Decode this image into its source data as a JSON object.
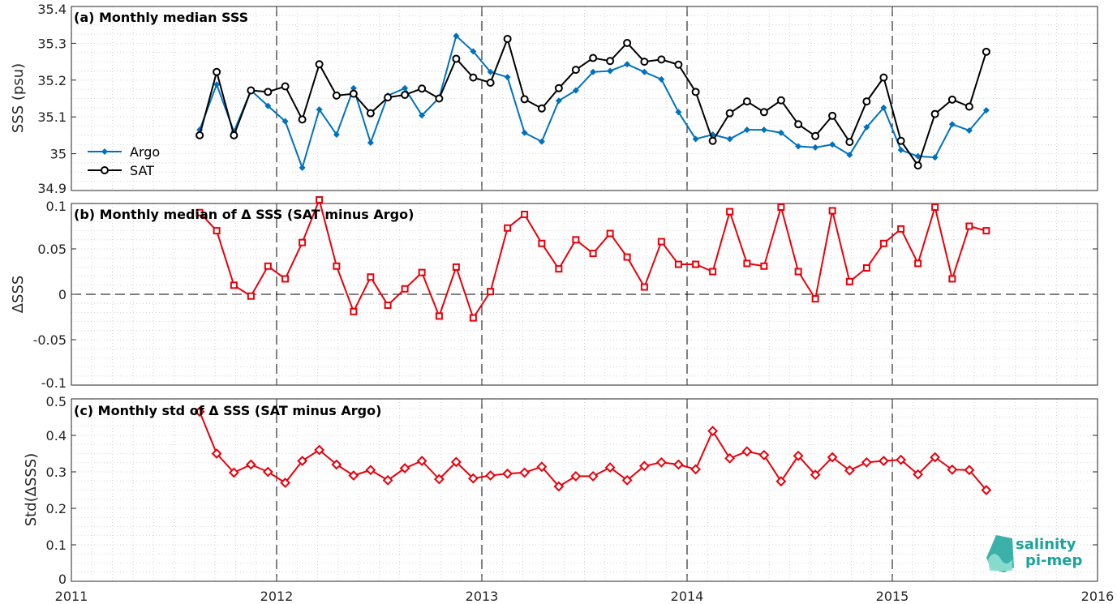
{
  "colors": {
    "argo": "#0072BD",
    "sat": "#000000",
    "delta": "#E8000B",
    "logo": "#1aa39a"
  },
  "logo": {
    "line1": "salinity",
    "line2": "pi-mep"
  },
  "x_axis": {
    "range": [
      2011,
      2016
    ],
    "ticks": [
      "2011",
      "2012",
      "2013",
      "2014",
      "2015",
      "2016"
    ],
    "vlines": [
      2012,
      2013,
      2014,
      2015
    ]
  },
  "chart_data": [
    {
      "type": "line",
      "title": "(a) Monthly median SSS",
      "ylabel": "SSS (psu)",
      "ylim": [
        34.9,
        35.4
      ],
      "yticks": [
        "34.9",
        "35",
        "35.1",
        "35.2",
        "35.3",
        "35.4"
      ],
      "grid": true,
      "legend_position": "left",
      "x": [
        2011.625,
        2011.708,
        2011.792,
        2011.875,
        2011.958,
        2012.042,
        2012.125,
        2012.208,
        2012.292,
        2012.375,
        2012.458,
        2012.542,
        2012.625,
        2012.708,
        2012.792,
        2012.875,
        2012.958,
        2013.042,
        2013.125,
        2013.208,
        2013.292,
        2013.375,
        2013.458,
        2013.542,
        2013.625,
        2013.708,
        2013.792,
        2013.875,
        2013.958,
        2014.042,
        2014.125,
        2014.208,
        2014.292,
        2014.375,
        2014.458,
        2014.542,
        2014.625,
        2014.708,
        2014.792,
        2014.875,
        2014.958,
        2015.042,
        2015.125,
        2015.208,
        2015.292,
        2015.375,
        2015.458
      ],
      "series": [
        {
          "name": "Argo",
          "marker": "diamond-filled",
          "values": [
            35.065,
            35.188,
            35.06,
            35.172,
            35.13,
            35.088,
            34.962,
            35.12,
            35.052,
            35.178,
            35.03,
            35.158,
            35.178,
            35.104,
            35.152,
            35.32,
            35.278,
            35.222,
            35.208,
            35.057,
            35.033,
            35.144,
            35.172,
            35.222,
            35.225,
            35.243,
            35.222,
            35.202,
            35.113,
            35.04,
            35.052,
            35.04,
            35.065,
            35.065,
            35.057,
            35.02,
            35.017,
            35.025,
            34.997,
            35.072,
            35.125,
            35.01,
            34.993,
            34.99,
            35.08,
            35.063,
            35.118
          ]
        },
        {
          "name": "SAT",
          "marker": "circle-open",
          "values": [
            35.05,
            35.222,
            35.05,
            35.172,
            35.168,
            35.183,
            35.093,
            35.243,
            35.158,
            35.163,
            35.11,
            35.153,
            35.16,
            35.177,
            35.15,
            35.258,
            35.207,
            35.193,
            35.312,
            35.148,
            35.123,
            35.178,
            35.228,
            35.26,
            35.252,
            35.301,
            35.25,
            35.256,
            35.242,
            35.168,
            35.035,
            35.11,
            35.142,
            35.113,
            35.145,
            35.08,
            35.048,
            35.103,
            35.032,
            35.142,
            35.207,
            35.035,
            34.968,
            35.108,
            35.147,
            35.128,
            35.277
          ]
        }
      ]
    },
    {
      "type": "line",
      "title": "(b) Monthly median of Δ SSS (SAT minus Argo)",
      "ylabel": "ΔSSS",
      "ylim": [
        -0.1,
        0.1
      ],
      "yticks": [
        "-0.1",
        "-0.05",
        "0",
        "0.05",
        "0.1"
      ],
      "grid": true,
      "zero_line": true,
      "x": [
        2011.625,
        2011.708,
        2011.792,
        2011.875,
        2011.958,
        2012.042,
        2012.125,
        2012.208,
        2012.292,
        2012.375,
        2012.458,
        2012.542,
        2012.625,
        2012.708,
        2012.792,
        2012.875,
        2012.958,
        2013.042,
        2013.125,
        2013.208,
        2013.292,
        2013.375,
        2013.458,
        2013.542,
        2013.625,
        2013.708,
        2013.792,
        2013.875,
        2013.958,
        2014.042,
        2014.125,
        2014.208,
        2014.292,
        2014.375,
        2014.458,
        2014.542,
        2014.625,
        2014.708,
        2014.792,
        2014.875,
        2014.958,
        2015.042,
        2015.125,
        2015.208,
        2015.292,
        2015.375,
        2015.458
      ],
      "series": [
        {
          "name": "",
          "marker": "square-open",
          "values": [
            0.09,
            0.07,
            0.01,
            -0.002,
            0.031,
            0.017,
            0.057,
            0.104,
            0.031,
            -0.019,
            0.019,
            -0.012,
            0.006,
            0.024,
            -0.024,
            0.03,
            -0.026,
            0.003,
            0.073,
            0.088,
            0.056,
            0.028,
            0.06,
            0.045,
            0.067,
            0.041,
            0.008,
            0.058,
            0.033,
            0.033,
            0.025,
            0.091,
            0.034,
            0.031,
            0.096,
            0.025,
            -0.005,
            0.092,
            0.014,
            0.029,
            0.056,
            0.072,
            0.034,
            0.096,
            0.017,
            0.075,
            0.07
          ]
        }
      ]
    },
    {
      "type": "line",
      "title": "(c) Monthly std of Δ SSS (SAT minus Argo)",
      "ylabel": "Std(ΔSSS)",
      "ylim": [
        0,
        0.5
      ],
      "yticks": [
        "0",
        "0.1",
        "0.2",
        "0.3",
        "0.4",
        "0.5"
      ],
      "grid": true,
      "x": [
        2011.625,
        2011.708,
        2011.792,
        2011.875,
        2011.958,
        2012.042,
        2012.125,
        2012.208,
        2012.292,
        2012.375,
        2012.458,
        2012.542,
        2012.625,
        2012.708,
        2012.792,
        2012.875,
        2012.958,
        2013.042,
        2013.125,
        2013.208,
        2013.292,
        2013.375,
        2013.458,
        2013.542,
        2013.625,
        2013.708,
        2013.792,
        2013.875,
        2013.958,
        2014.042,
        2014.125,
        2014.208,
        2014.292,
        2014.375,
        2014.458,
        2014.542,
        2014.625,
        2014.708,
        2014.792,
        2014.875,
        2014.958,
        2015.042,
        2015.125,
        2015.208,
        2015.292,
        2015.375,
        2015.458
      ],
      "series": [
        {
          "name": "",
          "marker": "diamond-open",
          "values": [
            0.465,
            0.35,
            0.298,
            0.32,
            0.3,
            0.27,
            0.33,
            0.36,
            0.32,
            0.29,
            0.305,
            0.277,
            0.31,
            0.33,
            0.28,
            0.327,
            0.282,
            0.29,
            0.295,
            0.298,
            0.314,
            0.26,
            0.288,
            0.288,
            0.312,
            0.277,
            0.316,
            0.326,
            0.32,
            0.307,
            0.412,
            0.337,
            0.356,
            0.346,
            0.274,
            0.344,
            0.292,
            0.34,
            0.304,
            0.326,
            0.33,
            0.333,
            0.293,
            0.34,
            0.306,
            0.305,
            0.25
          ]
        }
      ]
    }
  ]
}
